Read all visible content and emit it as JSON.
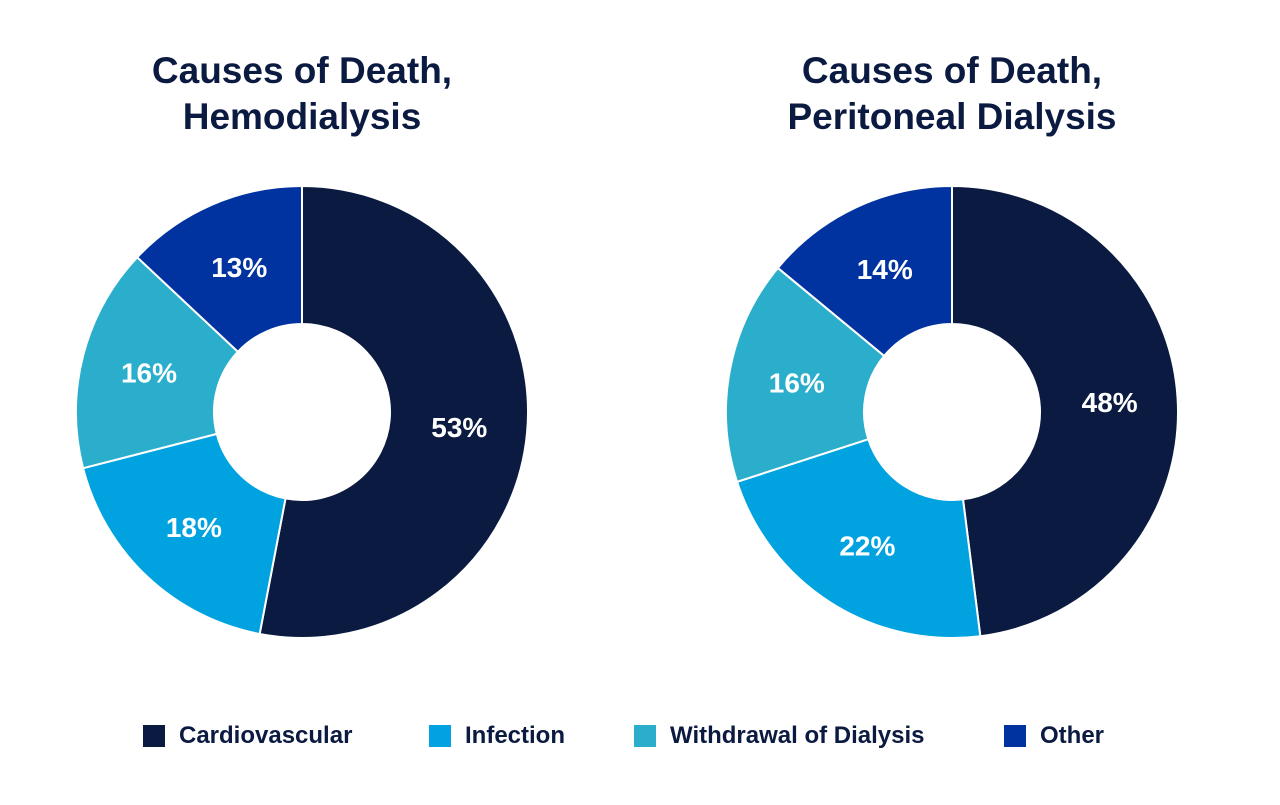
{
  "chart_data": [
    {
      "type": "pie",
      "variant": "donut",
      "title": "Causes of Death, Hemodialysis",
      "title_lines": [
        "Causes of Death,",
        "Hemodialysis"
      ],
      "categories": [
        "Cardiovascular",
        "Infection",
        "Withdrawal of Dialysis",
        "Other"
      ],
      "values": [
        53,
        18,
        16,
        13
      ],
      "labels": [
        "53%",
        "18%",
        "16%",
        "13%"
      ]
    },
    {
      "type": "pie",
      "variant": "donut",
      "title": "Causes of Death, Peritoneal Dialysis",
      "title_lines": [
        "Causes of Death,",
        "Peritoneal Dialysis"
      ],
      "categories": [
        "Cardiovascular",
        "Infection",
        "Withdrawal of Dialysis",
        "Other"
      ],
      "values": [
        48,
        22,
        16,
        14
      ],
      "labels": [
        "48%",
        "22%",
        "16%",
        "14%"
      ]
    }
  ],
  "legend": {
    "placement": "bottom",
    "items": [
      {
        "label": "Cardiovascular",
        "color": "#0b1a40"
      },
      {
        "label": "Infection",
        "color": "#00a3e0"
      },
      {
        "label": "Withdrawal of Dialysis",
        "color": "#2aaecb"
      },
      {
        "label": "Other",
        "color": "#0033a0"
      }
    ]
  }
}
